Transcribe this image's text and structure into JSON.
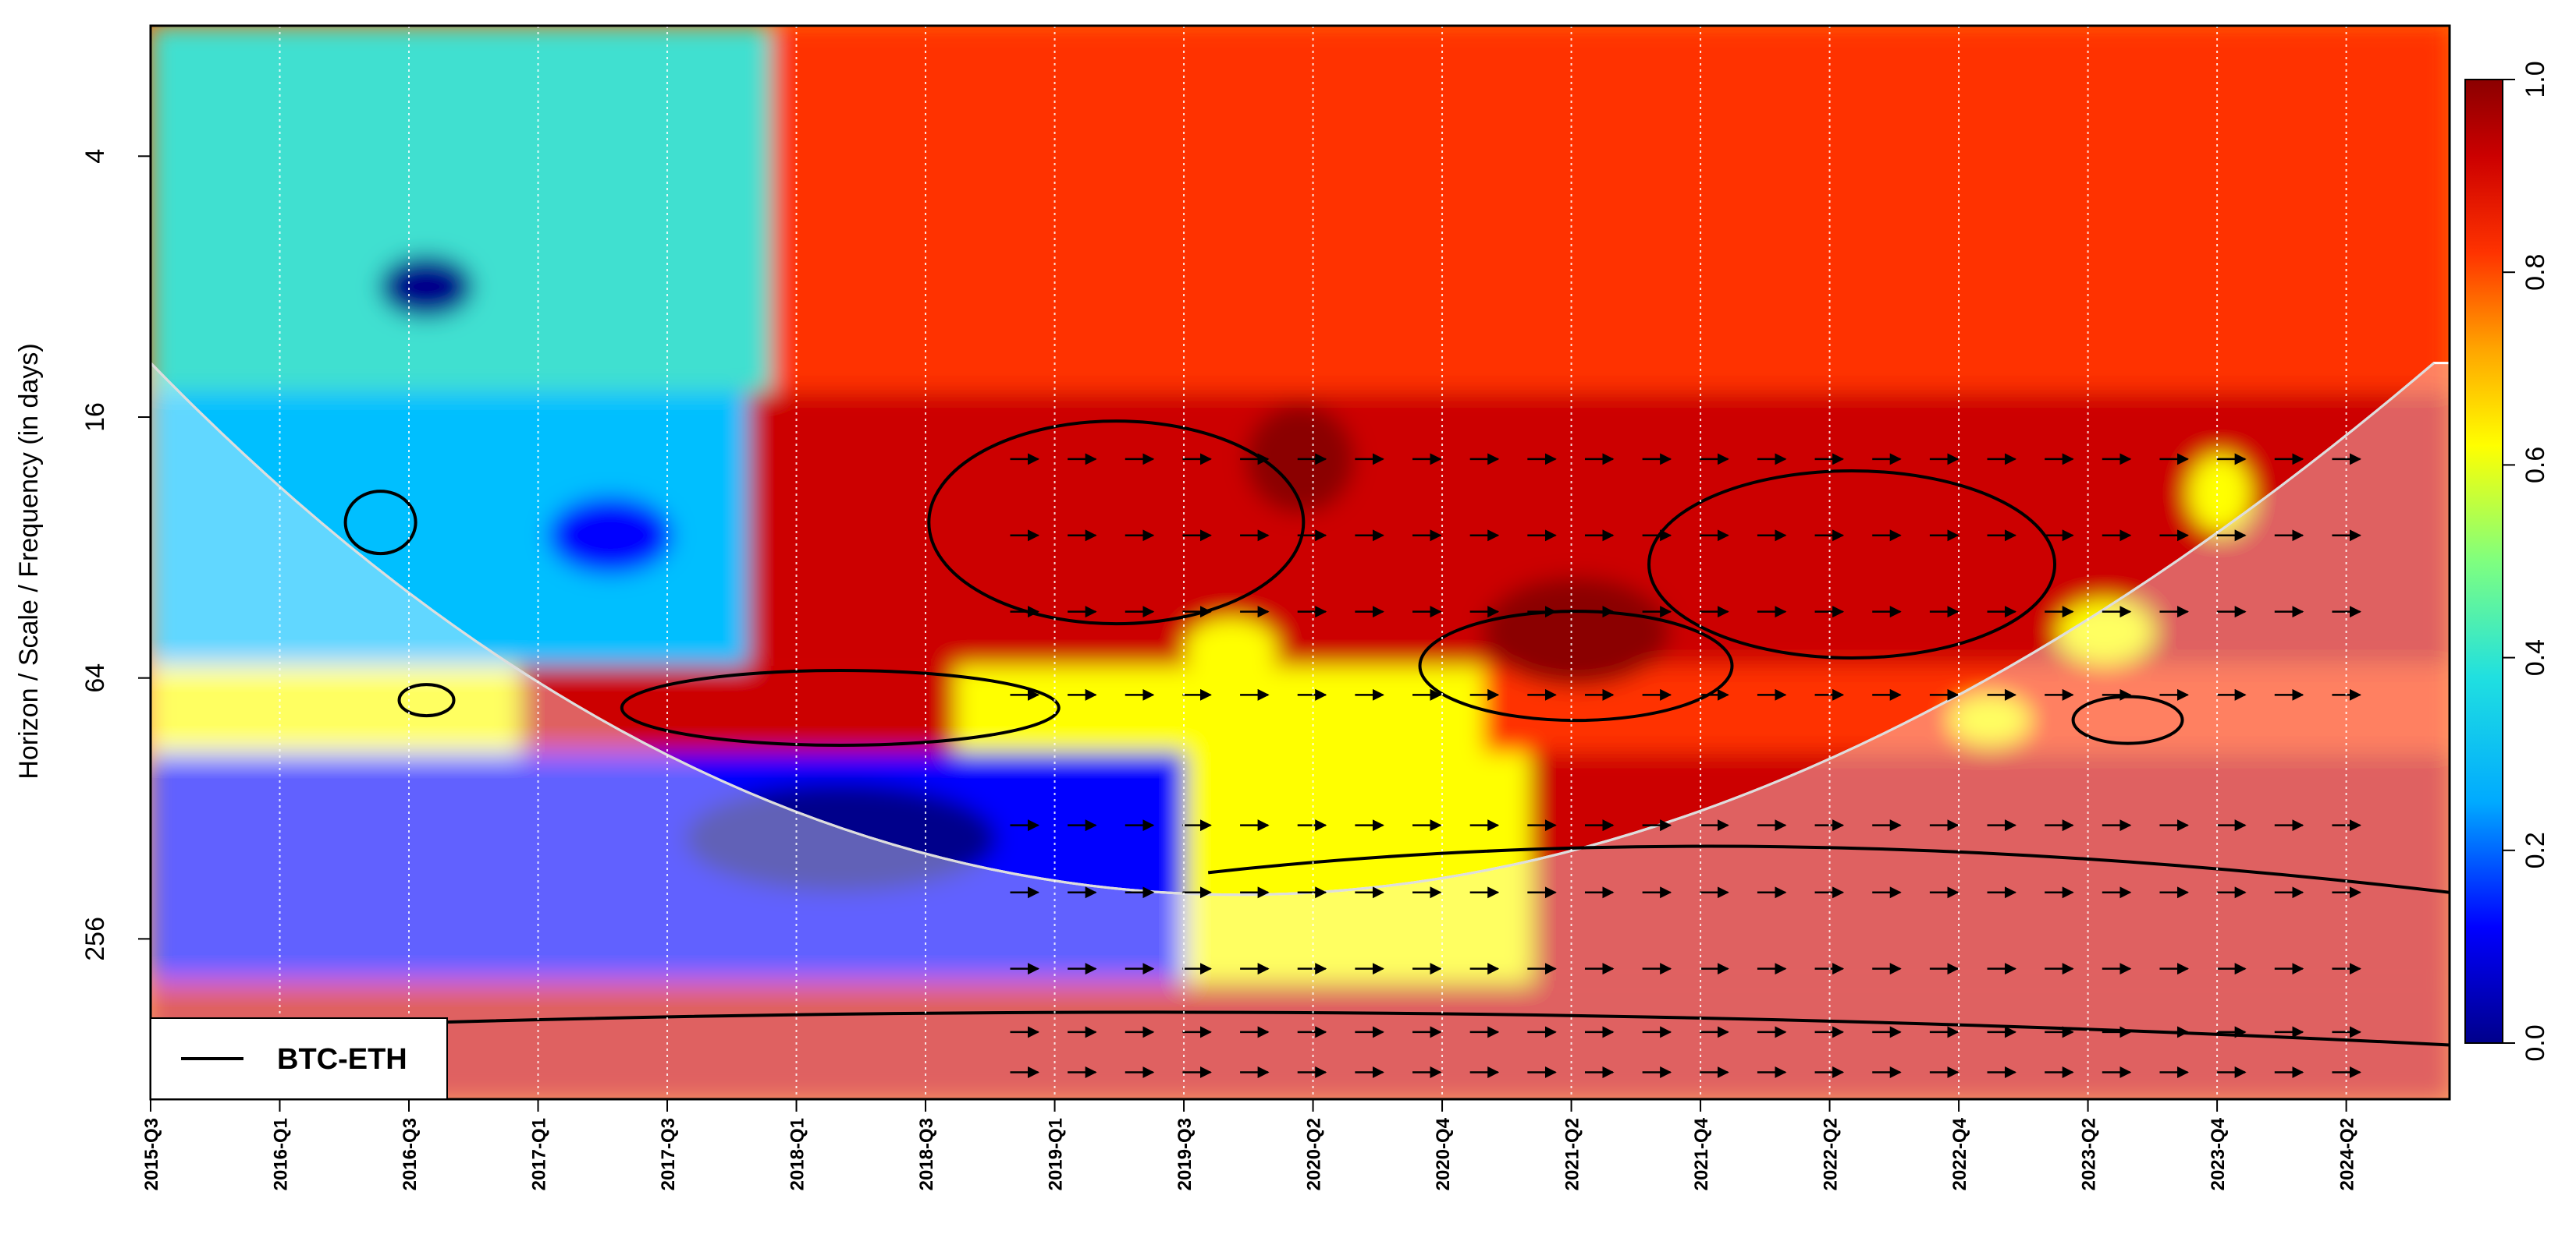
{
  "chart_data": {
    "type": "heatmap",
    "subtype": "wavelet-coherence",
    "ylabel": "Horizon / Scale / Frequency (in days)",
    "y_scale": "log2",
    "y_ticks": [
      4,
      16,
      64,
      256
    ],
    "y_range": [
      2,
      600
    ],
    "x_ticks": [
      "2015-Q3",
      "2016-Q1",
      "2016-Q3",
      "2017-Q1",
      "2017-Q3",
      "2018-Q1",
      "2018-Q3",
      "2019-Q1",
      "2019-Q3",
      "2020-Q2",
      "2020-Q4",
      "2021-Q2",
      "2021-Q4",
      "2022-Q2",
      "2022-Q4",
      "2023-Q2",
      "2023-Q4",
      "2024-Q2"
    ],
    "x_gridlines": "dotted white vertical lines at each tick",
    "colorbar": {
      "min": 0.0,
      "max": 1.0,
      "ticks": [
        "0.0",
        "0.2",
        "0.4",
        "0.6",
        "0.8",
        "1.0"
      ],
      "colors": [
        "#00008b",
        "#0000ff",
        "#00bfff",
        "#40e0d0",
        "#7fff7f",
        "#ffff00",
        "#ffa500",
        "#ff3300",
        "#cc0000",
        "#8b0000"
      ]
    },
    "cone_of_influence": true,
    "phase_arrows": true,
    "significance_contours": true,
    "legend": {
      "entries": [
        "BTC-ETH"
      ],
      "placement": "bottom-left"
    },
    "description_regions": [
      {
        "period_range": [
          2,
          16
        ],
        "time_range": [
          "2018-Q1",
          "2024-Q2"
        ],
        "coherence": "high, intermittent"
      },
      {
        "period_range": [
          16,
          64
        ],
        "time_range": [
          "2018-Q2",
          "2024-Q2"
        ],
        "coherence": 0.9
      },
      {
        "period_range": [
          90,
          300
        ],
        "time_range": [
          "2015-Q3",
          "2019-Q3"
        ],
        "coherence": 0.1
      },
      {
        "period_range": [
          120,
          300
        ],
        "time_range": [
          "2019-Q3",
          "2024-Q2"
        ],
        "coherence": 0.9
      },
      {
        "period_range": [
          300,
          600
        ],
        "time_range": [
          "2015-Q3",
          "2024-Q2"
        ],
        "coherence": 0.95
      }
    ]
  }
}
